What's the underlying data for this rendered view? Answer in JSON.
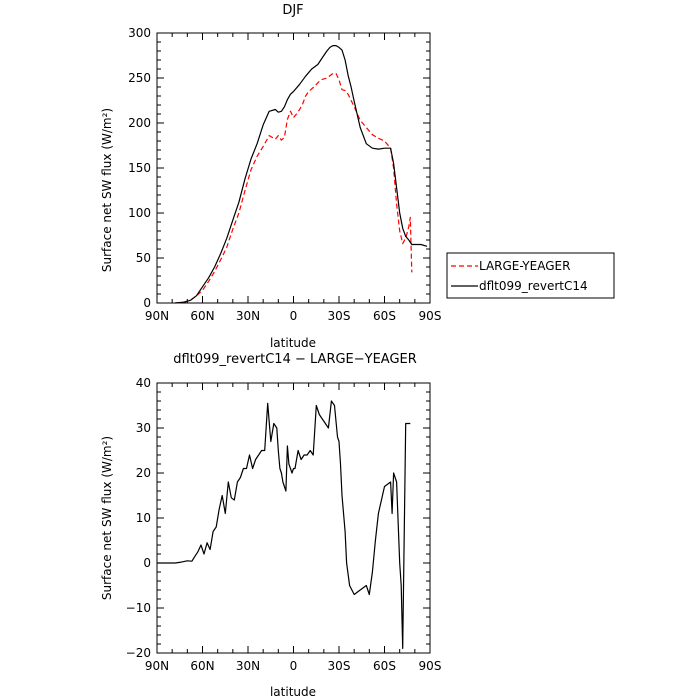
{
  "chart_data": [
    {
      "type": "line",
      "title": "DJF",
      "xlabel": "latitude",
      "ylabel": "Surface net SW flux (W/m²)",
      "xlim": [
        -90,
        90
      ],
      "ylim": [
        0,
        300
      ],
      "xticks": [
        -90,
        -60,
        -30,
        0,
        30,
        60,
        90
      ],
      "xtick_labels": [
        "90N",
        "60N",
        "30N",
        "0",
        "30S",
        "60S",
        "90S"
      ],
      "yticks": [
        0,
        50,
        100,
        150,
        200,
        250,
        300
      ],
      "ytick_labels": [
        "0",
        "50",
        "100",
        "150",
        "200",
        "250",
        "300"
      ],
      "grid": false,
      "legend_position": "right-outside",
      "series": [
        {
          "name": "LARGE-YEAGER",
          "color": "#ff0000",
          "dash": "dashed",
          "x": [
            -78,
            -72,
            -68,
            -64,
            -60,
            -56,
            -52,
            -48,
            -44,
            -40,
            -36,
            -32,
            -28,
            -24,
            -20,
            -16,
            -12,
            -10,
            -8,
            -6,
            -4,
            -2,
            0,
            2,
            4,
            6,
            8,
            10,
            14,
            18,
            22,
            26,
            28,
            30,
            32,
            34,
            36,
            40,
            44,
            48,
            52,
            56,
            60,
            64,
            66,
            68,
            70,
            72,
            74,
            76,
            77,
            78
          ],
          "y": [
            0,
            1,
            3,
            8,
            14,
            24,
            35,
            48,
            62,
            82,
            100,
            125,
            148,
            163,
            174,
            186,
            182,
            186,
            181,
            184,
            204,
            213,
            206,
            210,
            215,
            221,
            230,
            235,
            241,
            248,
            250,
            255,
            255,
            248,
            237,
            236,
            232,
            218,
            203,
            195,
            187,
            183,
            180,
            172,
            150,
            110,
            80,
            66,
            72,
            85,
            95,
            34
          ]
        },
        {
          "name": "dflt099_revertC14",
          "color": "#000000",
          "dash": "solid",
          "x": [
            -78,
            -72,
            -68,
            -64,
            -60,
            -56,
            -52,
            -48,
            -44,
            -40,
            -36,
            -32,
            -28,
            -24,
            -20,
            -16,
            -12,
            -10,
            -8,
            -6,
            -4,
            -2,
            0,
            4,
            8,
            12,
            16,
            20,
            22,
            24,
            26,
            28,
            30,
            32,
            34,
            36,
            38,
            40,
            44,
            48,
            52,
            56,
            60,
            64,
            66,
            68,
            70,
            72,
            74,
            76,
            78,
            80,
            84,
            88
          ],
          "y": [
            0,
            1,
            3,
            8,
            18,
            28,
            40,
            55,
            72,
            92,
            112,
            138,
            160,
            177,
            198,
            213,
            215,
            212,
            213,
            218,
            226,
            232,
            235,
            243,
            252,
            260,
            265,
            275,
            280,
            284,
            286,
            286,
            284,
            281,
            270,
            253,
            240,
            224,
            195,
            177,
            172,
            171,
            172,
            172,
            155,
            128,
            100,
            83,
            74,
            70,
            65,
            65,
            65,
            63
          ]
        }
      ]
    },
    {
      "type": "line",
      "title": "dflt099_revertC14 − LARGE−YEAGER",
      "xlabel": "latitude",
      "ylabel": "Surface net SW flux (W/m²)",
      "xlim": [
        -90,
        90
      ],
      "ylim": [
        -20,
        40
      ],
      "xticks": [
        -90,
        -60,
        -30,
        0,
        30,
        60,
        90
      ],
      "xtick_labels": [
        "90N",
        "60N",
        "30N",
        "0",
        "30S",
        "60S",
        "90S"
      ],
      "yticks": [
        -20,
        -10,
        0,
        10,
        20,
        30,
        40
      ],
      "ytick_labels": [
        "−20",
        "−10",
        "0",
        "10",
        "20",
        "30",
        "40"
      ],
      "grid": false,
      "series": [
        {
          "color": "#000000",
          "dash": "solid",
          "x": [
            -90,
            -84,
            -78,
            -74,
            -70,
            -67,
            -65,
            -63,
            -61,
            -59,
            -57,
            -55,
            -53,
            -51,
            -49,
            -47,
            -45,
            -43,
            -41,
            -39,
            -37,
            -35,
            -33,
            -31,
            -29,
            -27,
            -25,
            -23,
            -21,
            -19,
            -17,
            -15,
            -13,
            -11,
            -10,
            -9,
            -8,
            -7,
            -5,
            -4,
            -3,
            -1,
            0,
            1,
            3,
            5,
            7,
            9,
            11,
            13,
            15,
            17,
            19,
            21,
            23,
            25,
            27,
            29,
            30,
            31,
            32,
            34,
            35,
            37,
            40,
            44,
            48,
            50,
            52,
            54,
            56,
            60,
            64,
            65,
            66,
            68,
            70,
            71,
            72,
            74,
            75,
            76,
            77
          ],
          "y": [
            0,
            0,
            0,
            0.2,
            0.5,
            0.4,
            1.5,
            2.5,
            4,
            2,
            4.5,
            3,
            7,
            8,
            12,
            15,
            11,
            18,
            14.5,
            14,
            18,
            19,
            21,
            21,
            24,
            21,
            23,
            24,
            25,
            25,
            35.5,
            27,
            31,
            30,
            25,
            21,
            20,
            18,
            16,
            26,
            22,
            20,
            21,
            21,
            25,
            23,
            24,
            24,
            25,
            24,
            35,
            33,
            32,
            31,
            30,
            36,
            35,
            28,
            27,
            22,
            15,
            7,
            0,
            -5,
            -7,
            -6,
            -5,
            -7,
            -2,
            5,
            11,
            17,
            18,
            11,
            20,
            18,
            0,
            -5,
            -19,
            31,
            31,
            31,
            31
          ]
        }
      ]
    }
  ]
}
